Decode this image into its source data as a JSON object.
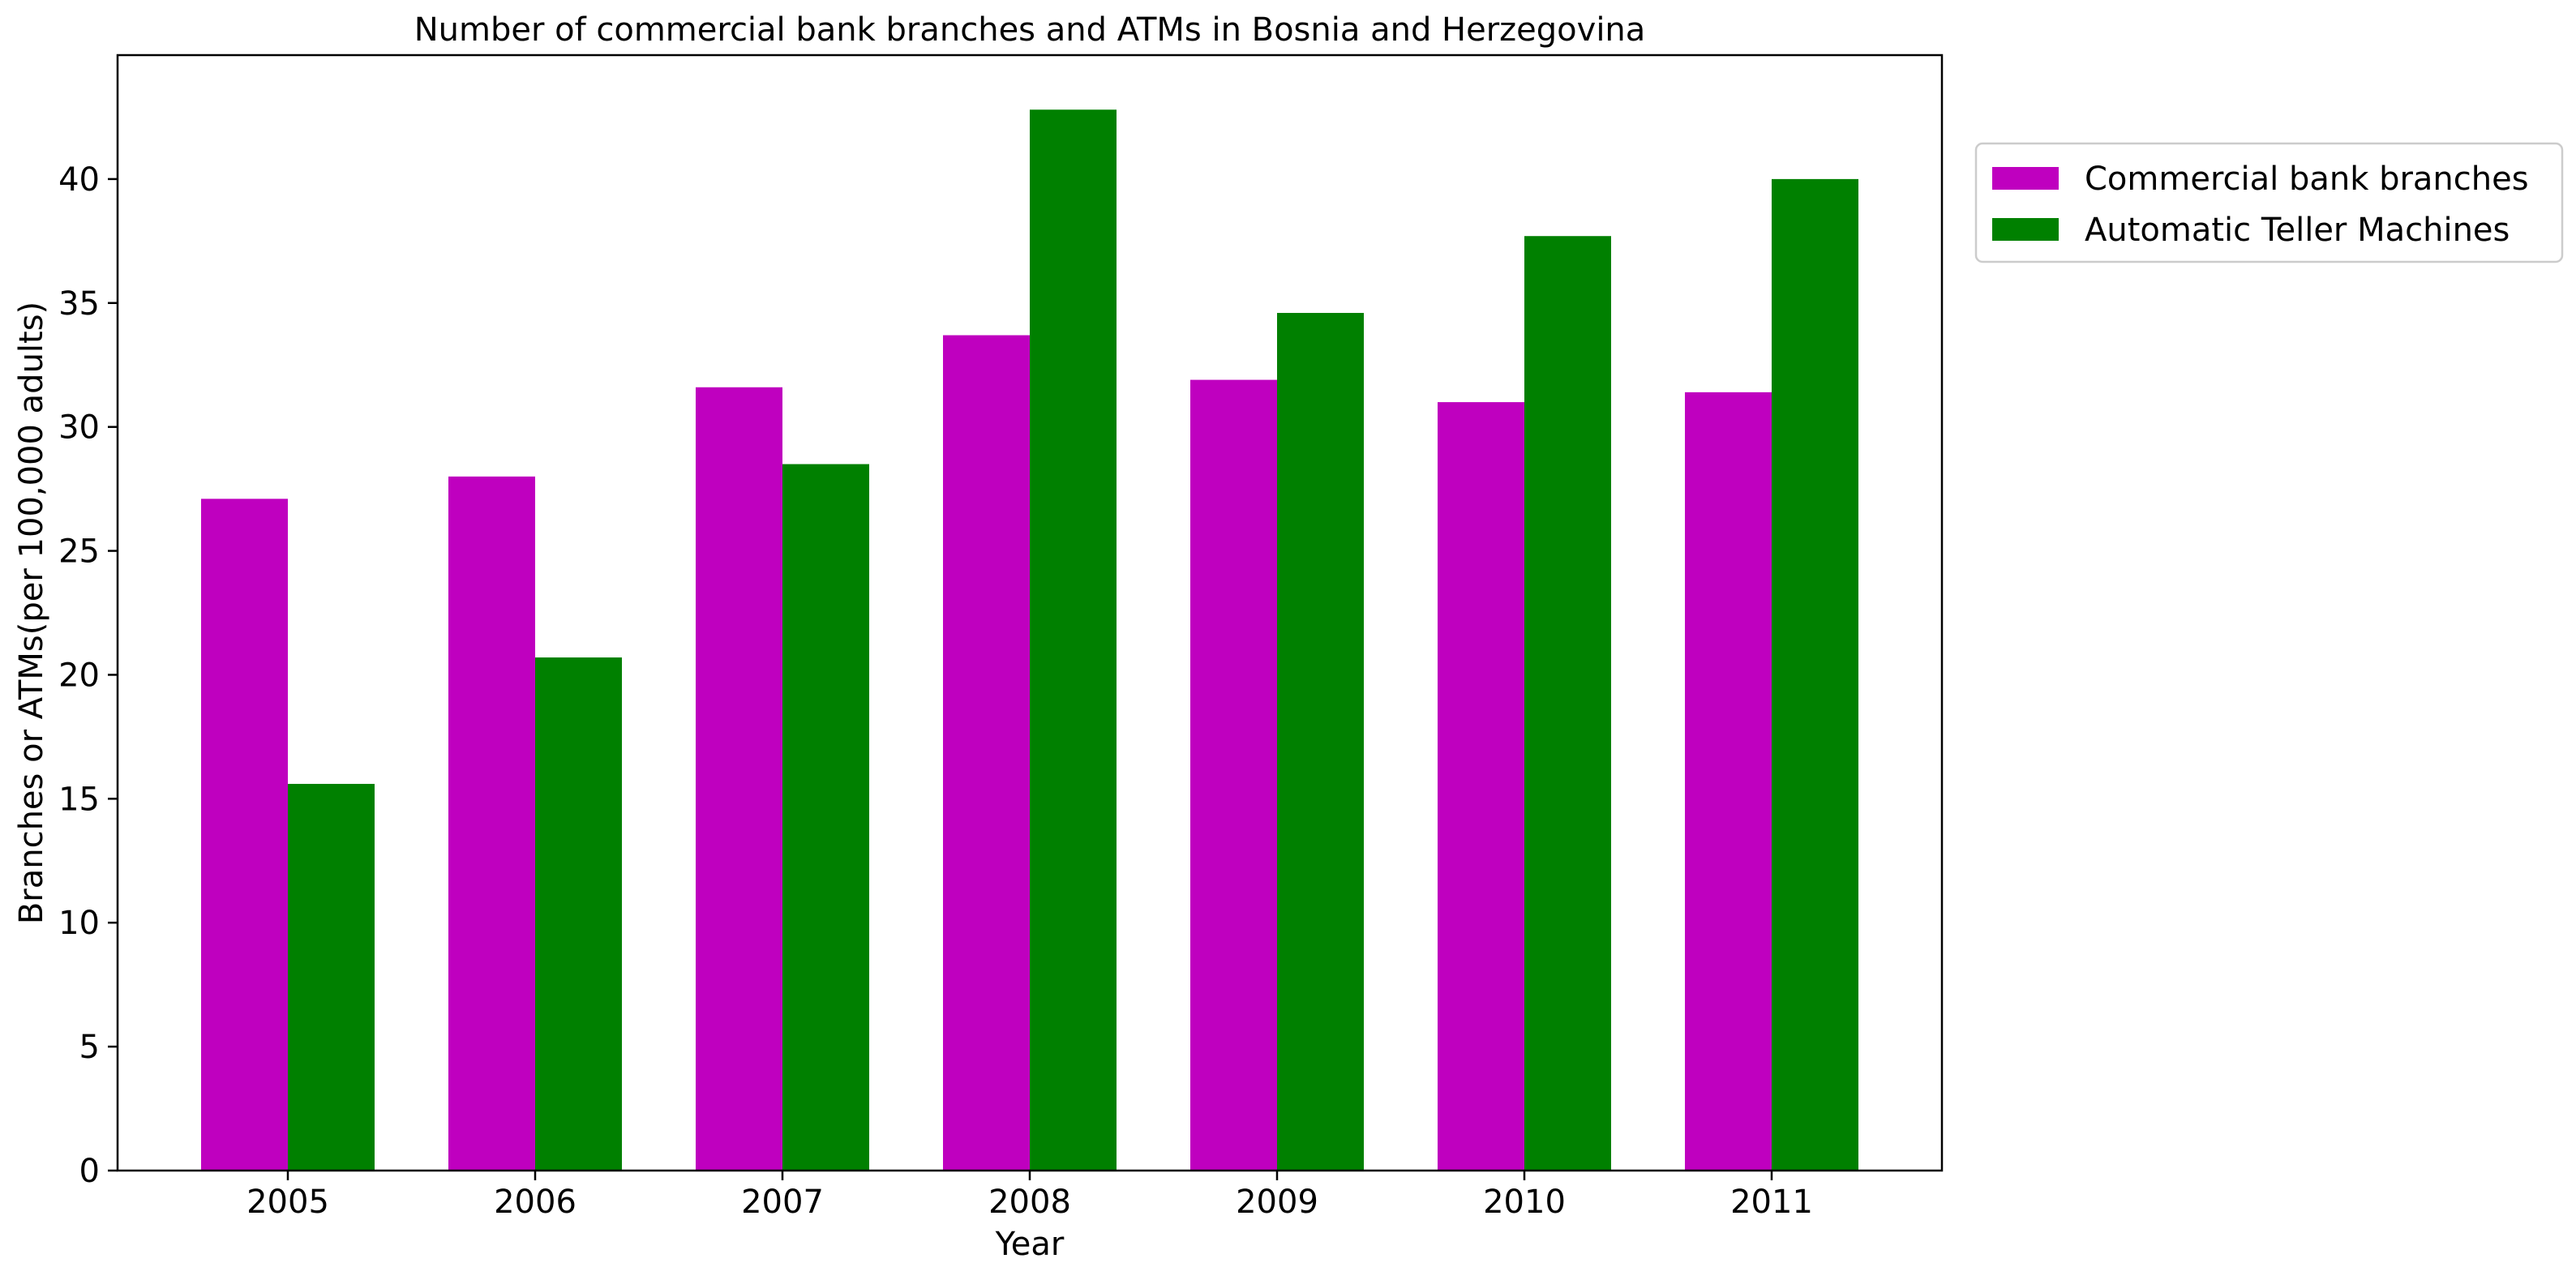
{
  "chart_data": {
    "type": "bar",
    "title": "Number of commercial bank branches and ATMs in Bosnia and Herzegovina",
    "xlabel": "Year",
    "ylabel": "Branches or ATMs(per 100,000 adults)",
    "categories": [
      "2005",
      "2006",
      "2007",
      "2008",
      "2009",
      "2010",
      "2011"
    ],
    "series": [
      {
        "name": "Commercial bank branches",
        "color": "#bf00bf",
        "values": [
          27.1,
          28.0,
          31.6,
          33.7,
          31.9,
          31.0,
          31.4
        ]
      },
      {
        "name": "Automatic Teller Machines",
        "color": "#008000",
        "values": [
          15.6,
          20.7,
          28.5,
          42.8,
          34.6,
          37.7,
          40.0
        ]
      }
    ],
    "ylim": [
      0,
      45
    ],
    "yticks": [
      0,
      5,
      10,
      15,
      20,
      25,
      30,
      35,
      40
    ],
    "grid": false,
    "legend_position": "outside-top-right"
  }
}
